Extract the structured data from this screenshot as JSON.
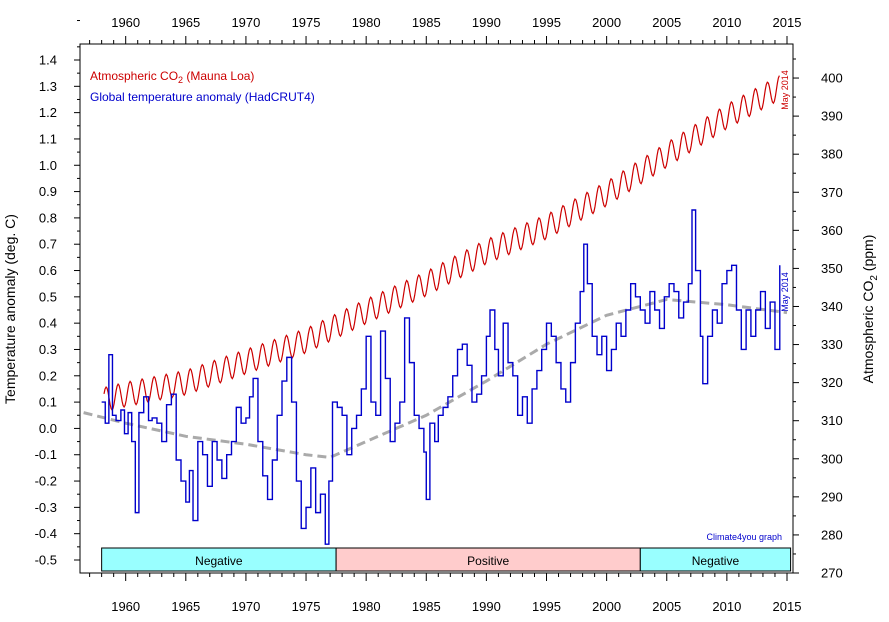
{
  "chart_data": {
    "type": "line",
    "x_ticks": [
      "1960",
      "1965",
      "1970",
      "1975",
      "1980",
      "1985",
      "1990",
      "1995",
      "2000",
      "2005",
      "2010",
      "2015"
    ],
    "xlim": [
      1956.2,
      2015.5
    ],
    "y_left": {
      "label": "Temperature anomaly (deg. C)",
      "ticks": [
        "1.4",
        "1.3",
        "1.2",
        "1.1",
        "1.0",
        "0.9",
        "0.8",
        "0.7",
        "0.6",
        "0.5",
        "0.4",
        "0.3",
        "0.2",
        "0.1",
        "0.0",
        "-0.1",
        "-0.2",
        "-0.3",
        "-0.4",
        "-0.5"
      ],
      "ylim": [
        -0.5,
        1.4
      ]
    },
    "y_right": {
      "label": "Atmospheric CO",
      "label_sub": "2",
      "label_tail": " (ppm)",
      "ticks": [
        "400",
        "390",
        "380",
        "370",
        "360",
        "350",
        "340",
        "330",
        "320",
        "310",
        "300",
        "290",
        "280",
        "270"
      ],
      "ylim": [
        270,
        405
      ]
    },
    "series": [
      {
        "name": "Atmospheric CO",
        "name_sub": "2",
        "name_tail": " (Mauna Loa)",
        "color": "#cc0000",
        "axis": "right",
        "end_annotation": "May 2014",
        "anchors": [
          [
            1958.2,
            315.5
          ],
          [
            1960,
            316.9
          ],
          [
            1965,
            320.0
          ],
          [
            1970,
            325.5
          ],
          [
            1975,
            331.0
          ],
          [
            1980,
            338.7
          ],
          [
            1985,
            346.0
          ],
          [
            1990,
            354.4
          ],
          [
            1995,
            360.9
          ],
          [
            2000,
            369.6
          ],
          [
            2005,
            379.8
          ],
          [
            2010,
            389.9
          ],
          [
            2014.4,
            397.5
          ]
        ],
        "seasonal_amplitude": 3.2
      },
      {
        "name": "Global temperature anomaly (HadCRUT4)",
        "color": "#0000cc",
        "axis": "left",
        "end_annotation": "May 2014",
        "points": [
          [
            1958.0,
            0.1
          ],
          [
            1958.3,
            0.02
          ],
          [
            1958.6,
            0.28
          ],
          [
            1958.9,
            0.05
          ],
          [
            1959.2,
            0.03
          ],
          [
            1959.6,
            0.07
          ],
          [
            1959.9,
            -0.02
          ],
          [
            1960.2,
            0.06
          ],
          [
            1960.5,
            -0.05
          ],
          [
            1960.8,
            -0.32
          ],
          [
            1961.1,
            0.06
          ],
          [
            1961.5,
            0.12
          ],
          [
            1961.9,
            0.03
          ],
          [
            1962.2,
            0.04
          ],
          [
            1962.6,
            0.02
          ],
          [
            1963.0,
            -0.05
          ],
          [
            1963.4,
            0.09
          ],
          [
            1963.8,
            0.13
          ],
          [
            1964.2,
            -0.12
          ],
          [
            1964.6,
            -0.2
          ],
          [
            1965.0,
            -0.28
          ],
          [
            1965.3,
            -0.16
          ],
          [
            1965.6,
            -0.35
          ],
          [
            1966.0,
            -0.05
          ],
          [
            1966.4,
            -0.1
          ],
          [
            1966.8,
            -0.22
          ],
          [
            1967.2,
            -0.05
          ],
          [
            1967.6,
            -0.12
          ],
          [
            1968.0,
            -0.19
          ],
          [
            1968.4,
            -0.1
          ],
          [
            1968.8,
            -0.05
          ],
          [
            1969.2,
            0.08
          ],
          [
            1969.6,
            0.02
          ],
          [
            1970.0,
            0.04
          ],
          [
            1970.3,
            0.12
          ],
          [
            1970.6,
            0.19
          ],
          [
            1971.0,
            -0.05
          ],
          [
            1971.4,
            -0.18
          ],
          [
            1971.8,
            -0.27
          ],
          [
            1972.2,
            -0.12
          ],
          [
            1972.6,
            0.05
          ],
          [
            1973.0,
            0.18
          ],
          [
            1973.4,
            0.27
          ],
          [
            1973.8,
            0.1
          ],
          [
            1974.2,
            -0.2
          ],
          [
            1974.6,
            -0.38
          ],
          [
            1975.0,
            -0.3
          ],
          [
            1975.4,
            -0.15
          ],
          [
            1975.8,
            -0.32
          ],
          [
            1976.2,
            -0.25
          ],
          [
            1976.6,
            -0.44
          ],
          [
            1976.9,
            -0.2
          ],
          [
            1977.2,
            0.1
          ],
          [
            1977.6,
            0.08
          ],
          [
            1978.0,
            0.05
          ],
          [
            1978.4,
            -0.1
          ],
          [
            1978.8,
            0.0
          ],
          [
            1979.2,
            0.05
          ],
          [
            1979.6,
            0.15
          ],
          [
            1980.0,
            0.35
          ],
          [
            1980.4,
            0.1
          ],
          [
            1980.8,
            0.05
          ],
          [
            1981.2,
            0.37
          ],
          [
            1981.6,
            0.19
          ],
          [
            1982.0,
            -0.05
          ],
          [
            1982.4,
            0.02
          ],
          [
            1982.8,
            0.1
          ],
          [
            1983.2,
            0.42
          ],
          [
            1983.6,
            0.25
          ],
          [
            1984.0,
            0.05
          ],
          [
            1984.4,
            0.0
          ],
          [
            1984.8,
            -0.09
          ],
          [
            1985.0,
            -0.27
          ],
          [
            1985.3,
            0.02
          ],
          [
            1985.7,
            -0.05
          ],
          [
            1986.0,
            0.05
          ],
          [
            1986.4,
            0.08
          ],
          [
            1986.8,
            0.12
          ],
          [
            1987.2,
            0.2
          ],
          [
            1987.6,
            0.3
          ],
          [
            1988.0,
            0.32
          ],
          [
            1988.4,
            0.24
          ],
          [
            1988.8,
            0.1
          ],
          [
            1989.2,
            0.13
          ],
          [
            1989.6,
            0.2
          ],
          [
            1990.0,
            0.35
          ],
          [
            1990.3,
            0.45
          ],
          [
            1990.7,
            0.3
          ],
          [
            1991.0,
            0.2
          ],
          [
            1991.4,
            0.4
          ],
          [
            1991.8,
            0.25
          ],
          [
            1992.2,
            0.2
          ],
          [
            1992.6,
            0.05
          ],
          [
            1993.0,
            0.12
          ],
          [
            1993.4,
            0.02
          ],
          [
            1993.8,
            0.15
          ],
          [
            1994.2,
            0.22
          ],
          [
            1994.6,
            0.3
          ],
          [
            1995.0,
            0.4
          ],
          [
            1995.4,
            0.35
          ],
          [
            1995.8,
            0.25
          ],
          [
            1996.2,
            0.15
          ],
          [
            1996.6,
            0.1
          ],
          [
            1997.0,
            0.25
          ],
          [
            1997.4,
            0.4
          ],
          [
            1997.8,
            0.52
          ],
          [
            1998.1,
            0.7
          ],
          [
            1998.4,
            0.55
          ],
          [
            1998.8,
            0.35
          ],
          [
            1999.2,
            0.28
          ],
          [
            1999.6,
            0.35
          ],
          [
            2000.0,
            0.22
          ],
          [
            2000.4,
            0.3
          ],
          [
            2000.8,
            0.4
          ],
          [
            2001.2,
            0.35
          ],
          [
            2001.6,
            0.45
          ],
          [
            2002.0,
            0.55
          ],
          [
            2002.4,
            0.5
          ],
          [
            2002.8,
            0.45
          ],
          [
            2003.2,
            0.4
          ],
          [
            2003.6,
            0.52
          ],
          [
            2004.0,
            0.45
          ],
          [
            2004.4,
            0.38
          ],
          [
            2004.8,
            0.5
          ],
          [
            2005.2,
            0.55
          ],
          [
            2005.6,
            0.52
          ],
          [
            2006.0,
            0.42
          ],
          [
            2006.4,
            0.48
          ],
          [
            2006.8,
            0.55
          ],
          [
            2007.1,
            0.83
          ],
          [
            2007.4,
            0.6
          ],
          [
            2007.8,
            0.35
          ],
          [
            2008.0,
            0.17
          ],
          [
            2008.4,
            0.35
          ],
          [
            2008.8,
            0.45
          ],
          [
            2009.2,
            0.4
          ],
          [
            2009.6,
            0.55
          ],
          [
            2010.0,
            0.6
          ],
          [
            2010.4,
            0.62
          ],
          [
            2010.8,
            0.45
          ],
          [
            2011.2,
            0.3
          ],
          [
            2011.6,
            0.45
          ],
          [
            2012.0,
            0.35
          ],
          [
            2012.4,
            0.45
          ],
          [
            2012.8,
            0.52
          ],
          [
            2013.2,
            0.38
          ],
          [
            2013.6,
            0.48
          ],
          [
            2014.0,
            0.3
          ],
          [
            2014.4,
            0.62
          ]
        ]
      },
      {
        "name": "",
        "color": "#aaaaaa",
        "dashed": true,
        "axis": "left",
        "points": [
          [
            1956.5,
            0.06
          ],
          [
            1960,
            0.02
          ],
          [
            1965,
            -0.03
          ],
          [
            1970,
            -0.06
          ],
          [
            1975,
            -0.1
          ],
          [
            1977,
            -0.11
          ],
          [
            1980,
            -0.05
          ],
          [
            1985,
            0.05
          ],
          [
            1990,
            0.18
          ],
          [
            1995,
            0.32
          ],
          [
            2000,
            0.43
          ],
          [
            2005,
            0.49
          ],
          [
            2010,
            0.47
          ],
          [
            2015,
            0.44
          ]
        ]
      }
    ],
    "phases": [
      {
        "label": "Negative",
        "start": 1958.0,
        "end": 1977.5,
        "color": "#99ffff"
      },
      {
        "label": "Positive",
        "start": 1977.5,
        "end": 2002.8,
        "color": "#ffcccc"
      },
      {
        "label": "Negative",
        "start": 2002.8,
        "end": 2015.3,
        "color": "#99ffff"
      }
    ],
    "credit": "Climate4you graph",
    "grid": false,
    "legend": "top-left"
  }
}
